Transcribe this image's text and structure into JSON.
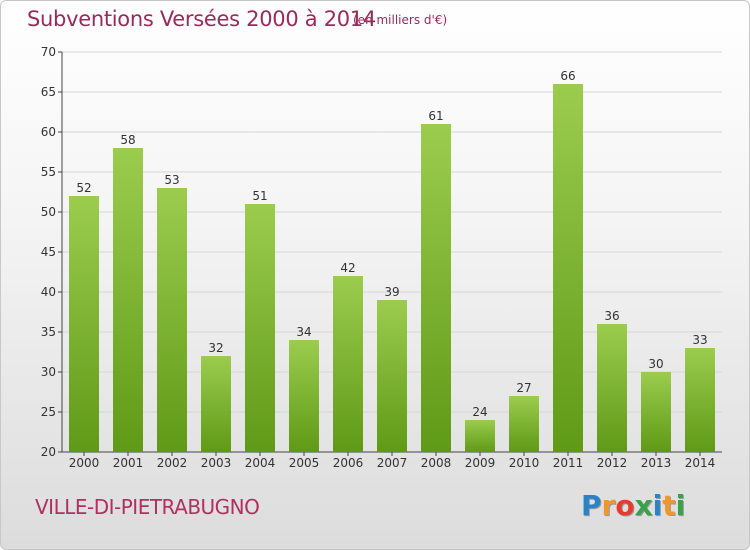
{
  "header": {
    "title": "Subventions Versées 2000 à 2014",
    "subtitle": "(en milliers d'€)"
  },
  "footer": {
    "commune": "VILLE-DI-PIETRABUGNO",
    "brand_letters": [
      "P",
      "r",
      "o",
      "x",
      "i",
      "t",
      "i"
    ],
    "brand_colors": [
      "#2a83c5",
      "#f0962b",
      "#e63b2e",
      "#3aa04a",
      "#2a83c5",
      "#f0962b",
      "#3aa04a"
    ]
  },
  "colors": {
    "bar_top": "#9ccc4e",
    "bar_bottom": "#5f9a16",
    "grid": "#d6d6d6",
    "axis": "#444444",
    "text": "#333333"
  },
  "chart_data": {
    "type": "bar",
    "categories": [
      "2000",
      "2001",
      "2002",
      "2003",
      "2004",
      "2005",
      "2006",
      "2007",
      "2008",
      "2009",
      "2010",
      "2011",
      "2012",
      "2013",
      "2014"
    ],
    "values": [
      52,
      58,
      53,
      32,
      51,
      34,
      42,
      39,
      61,
      24,
      27,
      66,
      36,
      30,
      33
    ],
    "yticks": [
      20,
      25,
      30,
      35,
      40,
      45,
      50,
      55,
      60,
      65,
      70
    ],
    "ylim": [
      20,
      70
    ],
    "grid": true,
    "data_labels": true
  }
}
